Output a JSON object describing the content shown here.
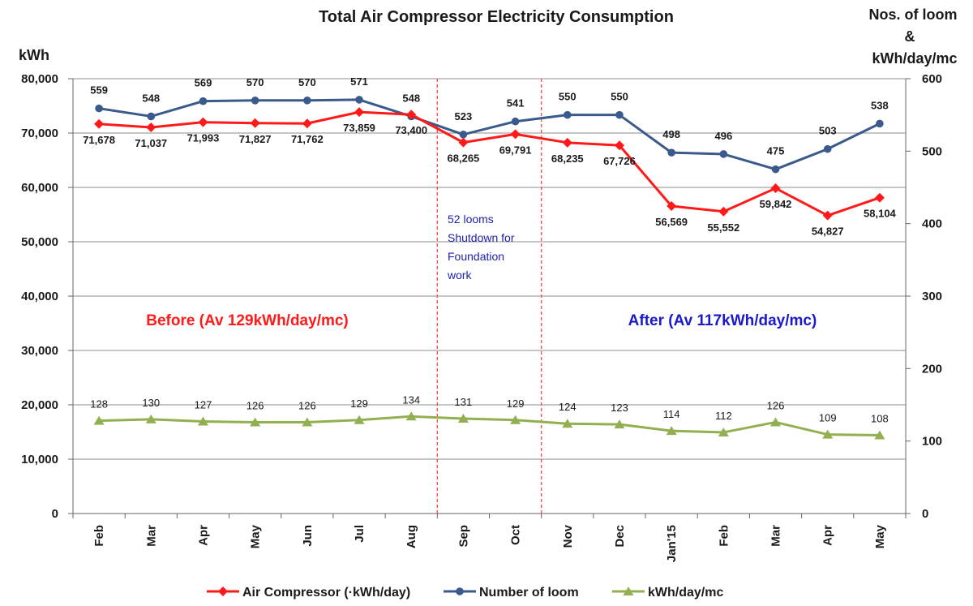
{
  "chart_data": {
    "type": "line",
    "title": "Total Air Compressor Electricity Consumption",
    "y_left_label": "kWh",
    "y_right_label_lines": [
      "Nos. of loom",
      "&",
      "kWh/day/mc"
    ],
    "y_left_lim": [
      0,
      80000
    ],
    "y_left_ticks": [
      "0",
      "10,000",
      "20,000",
      "30,000",
      "40,000",
      "50,000",
      "60,000",
      "70,000",
      "80,000"
    ],
    "y_right_lim": [
      0,
      600
    ],
    "y_right_ticks": [
      "0",
      "100",
      "200",
      "300",
      "400",
      "500",
      "600"
    ],
    "grid": "horizontal",
    "legend_position": "bottom",
    "categories": [
      "Feb",
      "Mar",
      "Apr",
      "May",
      "Jun",
      "Jul",
      "Aug",
      "Sep",
      "Oct",
      "Nov",
      "Dec",
      "Jan'15",
      "Feb",
      "Mar",
      "Apr",
      "May"
    ],
    "series": [
      {
        "name": "Air Compressor (·kWh/day)",
        "axis": "left",
        "color": "#ff1a1a",
        "marker": "diamond",
        "values": [
          71678,
          71037,
          71993,
          71827,
          71762,
          73859,
          73400,
          68265,
          69791,
          68235,
          67726,
          56569,
          55552,
          59842,
          54827,
          58104
        ],
        "labels": [
          "71,678",
          "71,037",
          "71,993",
          "71,827",
          "71,762",
          "73,859",
          "73,400",
          "68,265",
          "69,791",
          "68,235",
          "67,726",
          "56,569",
          "55,552",
          "59,842",
          "54,827",
          "58,104"
        ]
      },
      {
        "name": "Number of loom",
        "axis": "right",
        "color": "#3a5a8c",
        "marker": "circle",
        "values": [
          559,
          548,
          569,
          570,
          570,
          571,
          548,
          523,
          541,
          550,
          550,
          498,
          496,
          475,
          503,
          538
        ],
        "labels": [
          "559",
          "548",
          "569",
          "570",
          "570",
          "571",
          "548",
          "523",
          "541",
          "550",
          "550",
          "498",
          "496",
          "475",
          "503",
          "538"
        ]
      },
      {
        "name": "kWh/day/mc",
        "axis": "right",
        "color": "#92b050",
        "marker": "triangle",
        "values": [
          128,
          130,
          127,
          126,
          126,
          129,
          134,
          131,
          129,
          124,
          123,
          114,
          112,
          126,
          109,
          108
        ],
        "labels": [
          "128",
          "130",
          "127",
          "126",
          "126",
          "129",
          "134",
          "131",
          "129",
          "124",
          "123",
          "114",
          "112",
          "126",
          "109",
          "108"
        ]
      }
    ],
    "dividers_after_category_index": [
      6,
      8
    ],
    "annotations": {
      "shutdown_lines": [
        "52 looms",
        "Shutdown for",
        "Foundation",
        "work"
      ],
      "before": "Before (Av 129kWh/day/mc)",
      "after": "After (Av 117kWh/day/mc)"
    }
  }
}
